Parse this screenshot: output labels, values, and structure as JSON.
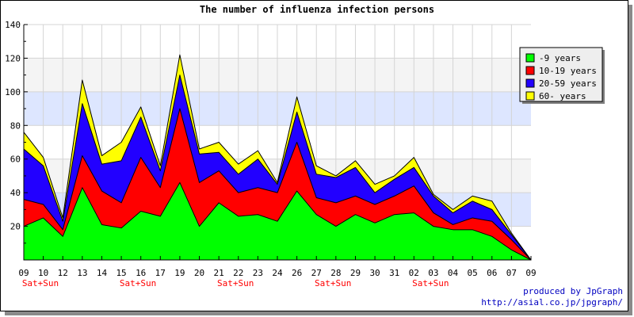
{
  "chart_data": {
    "type": "area",
    "stacked": true,
    "title": "The number of influenza infection persons",
    "categories": [
      "09",
      "10",
      "12",
      "13",
      "14",
      "15",
      "16",
      "17",
      "19",
      "20",
      "21",
      "22",
      "23",
      "24",
      "26",
      "27",
      "28",
      "29",
      "30",
      "31",
      "02",
      "03",
      "04",
      "05",
      "06",
      "07",
      "09"
    ],
    "weekend_label": "Sat+Sun",
    "weekend_indices": [
      0,
      5,
      10,
      15,
      20
    ],
    "ylim": [
      0,
      140
    ],
    "yticks": [
      20,
      40,
      60,
      80,
      100,
      120,
      140
    ],
    "ytick_labels": [
      "20",
      "40",
      "60",
      "80",
      "100",
      "120",
      "140"
    ],
    "grid": true,
    "legend_position": "top-right",
    "series": [
      {
        "name": "-9 years",
        "color": "#00ff00",
        "values": [
          20,
          25,
          14,
          43,
          21,
          19,
          29,
          26,
          46,
          20,
          34,
          26,
          27,
          23,
          41,
          27,
          20,
          27,
          22,
          27,
          28,
          20,
          18,
          18,
          14,
          6,
          0
        ]
      },
      {
        "name": "10-19 years",
        "color": "#ff0000",
        "values": [
          16,
          8,
          4,
          19,
          20,
          15,
          32,
          17,
          44,
          26,
          19,
          14,
          16,
          17,
          29,
          10,
          14,
          11,
          11,
          11,
          16,
          8,
          3,
          7,
          9,
          6,
          0
        ]
      },
      {
        "name": "20-59 years",
        "color": "#2200ff",
        "values": [
          30,
          23,
          5,
          31,
          16,
          25,
          24,
          10,
          20,
          17,
          11,
          11,
          17,
          5,
          18,
          14,
          15,
          17,
          7,
          10,
          11,
          10,
          7,
          10,
          7,
          3,
          0
        ]
      },
      {
        "name": "60- years",
        "color": "#ffff00",
        "values": [
          10,
          5,
          2,
          14,
          5,
          11,
          6,
          3,
          12,
          3,
          6,
          6,
          5,
          1,
          9,
          5,
          1,
          4,
          5,
          2,
          6,
          1,
          2,
          3,
          5,
          1,
          0
        ]
      }
    ]
  },
  "footer": {
    "line1": "produced by JpGraph",
    "line2": "http://asial.co.jp/jpgraph/"
  }
}
